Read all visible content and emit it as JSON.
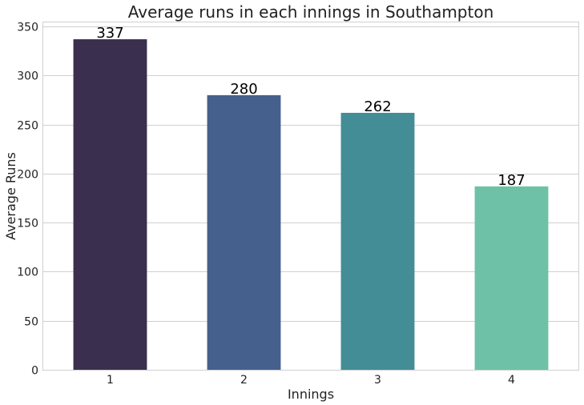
{
  "chart_data": {
    "type": "bar",
    "title": "Average runs in each innings in Southampton",
    "xlabel": "Innings",
    "ylabel": "Average Runs",
    "categories": [
      "1",
      "2",
      "3",
      "4"
    ],
    "values": [
      337,
      280,
      262,
      187
    ],
    "data_labels": [
      "337",
      "280",
      "262",
      "187"
    ],
    "bar_colors": [
      "#3b2f4f",
      "#46608e",
      "#438d96",
      "#6ec1a6"
    ],
    "ylim": [
      0,
      355
    ],
    "yticks": [
      0,
      50,
      100,
      150,
      200,
      250,
      300,
      350
    ],
    "grid": true,
    "legend": "none"
  }
}
